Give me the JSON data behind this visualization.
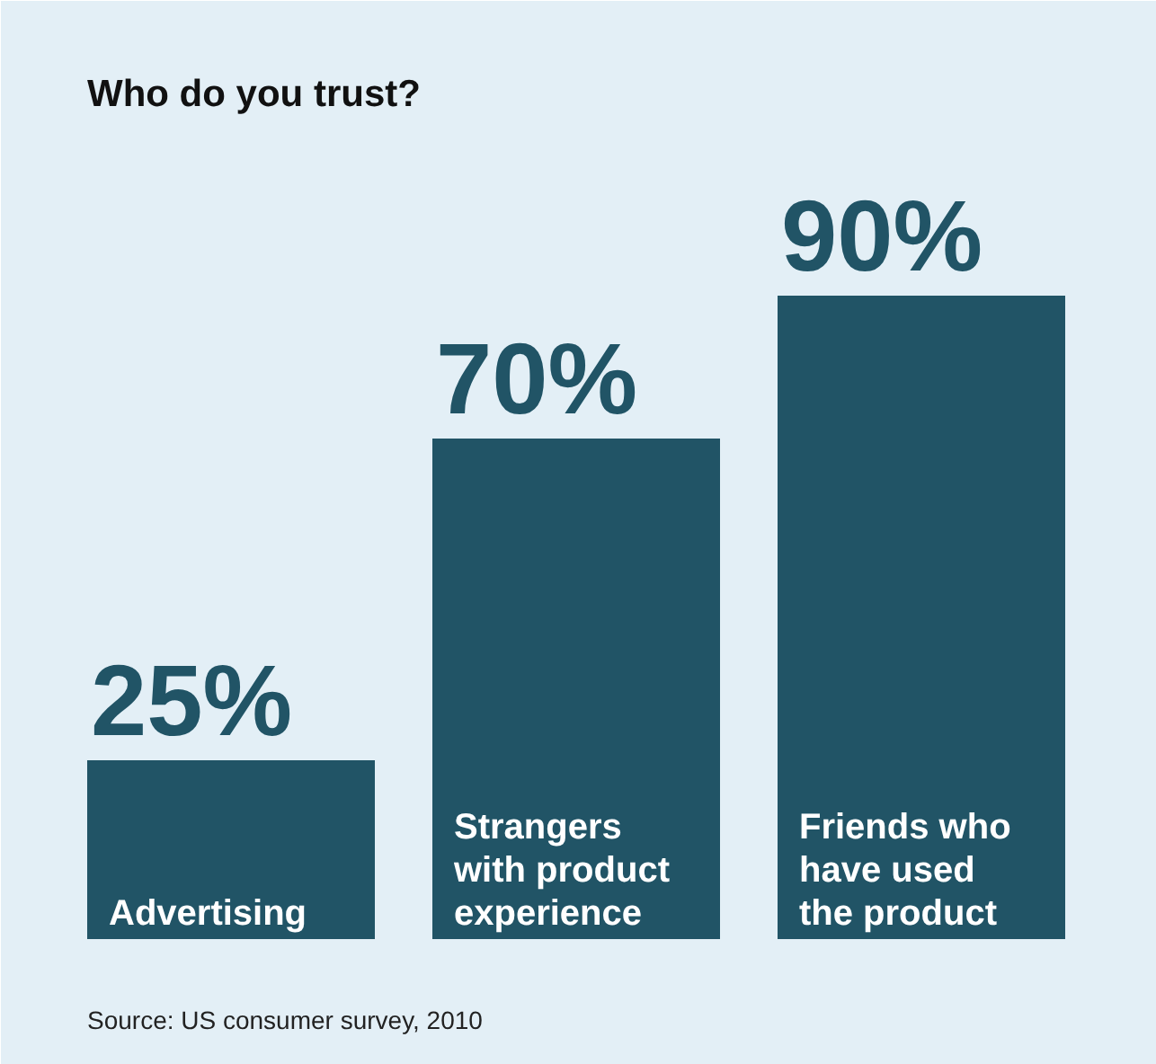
{
  "chart_data": {
    "type": "bar",
    "title": "Who do you trust?",
    "categories": [
      "Advertising",
      "Strangers with product experience",
      "Friends who have used the product"
    ],
    "values": [
      25,
      70,
      90
    ],
    "value_labels": [
      "25%",
      "70%",
      "90%"
    ],
    "color": "#215466",
    "annotations": [
      "Source: US consumer survey, 2010"
    ]
  }
}
